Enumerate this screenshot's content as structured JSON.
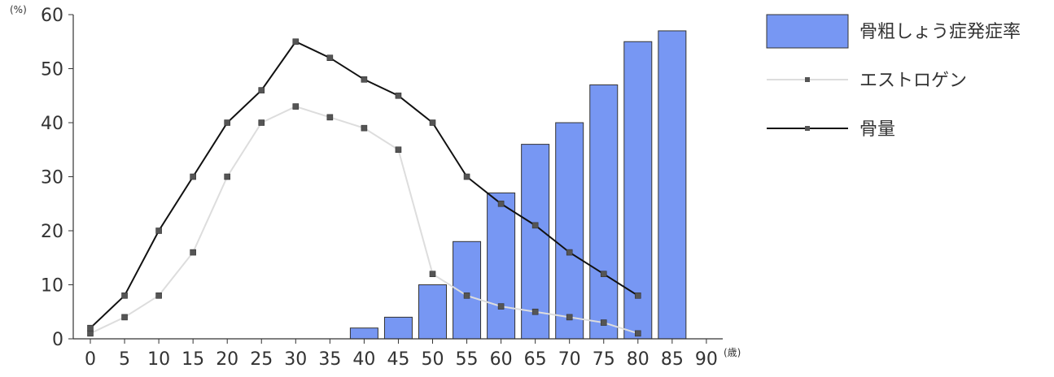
{
  "chart_data": {
    "type": "bar+line",
    "title": "",
    "y_unit": "(%)",
    "x_unit": "(歳)",
    "xlim": [
      0,
      90
    ],
    "ylim": [
      0,
      60
    ],
    "x_ticks": [
      0,
      5,
      10,
      15,
      20,
      25,
      30,
      35,
      40,
      45,
      50,
      55,
      60,
      65,
      70,
      75,
      80,
      85,
      90
    ],
    "y_ticks": [
      0,
      10,
      20,
      30,
      40,
      50,
      60
    ],
    "grid": false,
    "legend_position": "right",
    "series": [
      {
        "name": "骨粗しょう症発症率",
        "kind": "bar",
        "color": "#7797f3",
        "x": [
          40,
          45,
          50,
          55,
          60,
          65,
          70,
          75,
          80,
          85
        ],
        "values": [
          2,
          4,
          10,
          18,
          27,
          36,
          40,
          47,
          55,
          57
        ]
      },
      {
        "name": "エストロゲン",
        "kind": "line",
        "color": "#dddddd",
        "marker_color": "#555555",
        "x": [
          0,
          5,
          10,
          15,
          20,
          25,
          30,
          35,
          40,
          45,
          50,
          55,
          60,
          65,
          70,
          75,
          80
        ],
        "values": [
          1,
          4,
          8,
          16,
          30,
          40,
          43,
          41,
          39,
          35,
          12,
          8,
          6,
          5,
          4,
          3,
          1
        ]
      },
      {
        "name": "骨量",
        "kind": "line",
        "color": "#111111",
        "marker_color": "#555555",
        "x": [
          0,
          5,
          10,
          15,
          20,
          25,
          30,
          35,
          40,
          45,
          50,
          55,
          60,
          65,
          70,
          75,
          80
        ],
        "values": [
          2,
          8,
          20,
          30,
          40,
          46,
          55,
          52,
          48,
          45,
          40,
          30,
          25,
          21,
          16,
          12,
          8
        ]
      }
    ]
  }
}
